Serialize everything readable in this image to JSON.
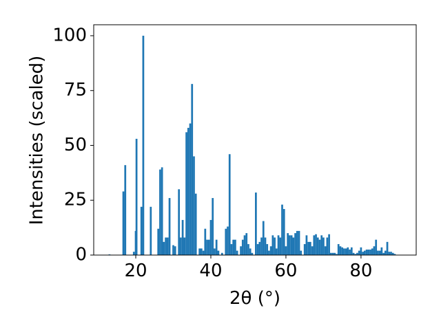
{
  "chart_data": {
    "type": "bar",
    "xlabel": "2θ (°)",
    "ylabel": "Intensities (scaled)",
    "color": "#1f77b4",
    "xlim": [
      8.8,
      94.7
    ],
    "ylim": [
      0,
      105
    ],
    "xticks": [
      20,
      40,
      60,
      80
    ],
    "yticks": [
      0,
      25,
      50,
      75,
      100
    ],
    "grid": false,
    "x": [
      13,
      16.7,
      17.2,
      19.5,
      20,
      20.2,
      21.5,
      22,
      24,
      26,
      26.5,
      27,
      27.5,
      28,
      28.5,
      29,
      30,
      30.5,
      31.5,
      32,
      32.5,
      33,
      33.5,
      34,
      34.5,
      35,
      35.5,
      36,
      37,
      37.5,
      38,
      38.5,
      39,
      39.5,
      40,
      40.5,
      41,
      41.5,
      42,
      43,
      44,
      44.5,
      45,
      45.5,
      46,
      46.5,
      47,
      48,
      48.5,
      49,
      49.5,
      50,
      50.5,
      51,
      52,
      52.5,
      53,
      53.5,
      54,
      54.5,
      55,
      55.5,
      56,
      56.5,
      57,
      57.5,
      58,
      58.5,
      59,
      59.5,
      60,
      60.5,
      61,
      61.5,
      62,
      62.5,
      63,
      63.5,
      64,
      65,
      65.5,
      66,
      66.5,
      67,
      67.5,
      68,
      68.5,
      69,
      69.5,
      70,
      70.5,
      71,
      71.5,
      72,
      72.5,
      73,
      73.5,
      74,
      74.5,
      75,
      75.5,
      76,
      76.5,
      77,
      77.5,
      78,
      78.5,
      79,
      79.5,
      80,
      80.5,
      81,
      81.5,
      82,
      82.5,
      83,
      83.5,
      84,
      84.5,
      85,
      85.5,
      86,
      86.5,
      87,
      87.5,
      88,
      88.5,
      89
    ],
    "values": [
      0.3,
      29,
      41,
      1.5,
      11,
      53,
      22,
      100,
      22,
      12,
      39,
      40,
      6,
      8,
      8,
      26,
      4.5,
      4,
      30,
      8,
      16,
      8,
      56,
      58,
      60,
      78,
      45,
      28,
      3,
      3,
      2,
      12,
      7,
      7,
      16,
      26,
      3,
      7,
      2,
      1,
      12,
      13,
      46,
      5,
      7,
      7,
      2,
      4,
      7,
      9,
      10,
      5,
      3,
      1,
      28.5,
      5,
      6,
      8,
      15.5,
      8,
      5,
      2,
      4,
      9,
      8,
      3,
      9,
      8,
      23,
      21,
      4,
      10,
      9,
      9,
      8,
      10,
      11,
      11,
      2,
      5,
      9,
      6,
      6,
      4,
      9,
      9.5,
      8,
      7,
      9,
      8,
      4,
      8,
      9.5,
      1,
      1,
      1,
      0.5,
      5,
      4,
      3.5,
      3,
      3,
      3.5,
      2.5,
      3.5,
      1,
      0.5,
      1,
      2,
      3.5,
      1.5,
      2,
      2.5,
      2.5,
      2.5,
      3,
      4,
      7,
      2,
      2,
      3.5,
      1,
      2,
      6,
      1.5,
      1.5,
      1,
      0.5
    ]
  }
}
